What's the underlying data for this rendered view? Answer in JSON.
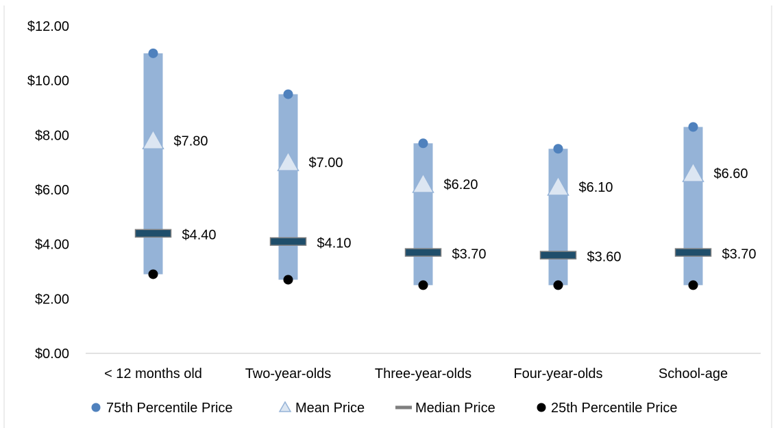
{
  "chart_data": {
    "type": "range",
    "categories": [
      "< 12 months old",
      "Two-year-olds",
      "Three-year-olds",
      "Four-year-olds",
      "School-age"
    ],
    "series": [
      {
        "name": "75th Percentile Price",
        "values": [
          11.0,
          9.5,
          7.7,
          7.5,
          8.3
        ]
      },
      {
        "name": "Mean Price",
        "values": [
          7.8,
          7.0,
          6.2,
          6.1,
          6.6
        ]
      },
      {
        "name": "Median Price",
        "values": [
          4.4,
          4.1,
          3.7,
          3.6,
          3.7
        ]
      },
      {
        "name": "25th Percentile Price",
        "values": [
          2.9,
          2.7,
          2.5,
          2.5,
          2.5
        ]
      }
    ],
    "data_labels": {
      "mean": [
        "$7.80",
        "$7.00",
        "$6.20",
        "$6.10",
        "$6.60"
      ],
      "median": [
        "$4.40",
        "$4.10",
        "$3.70",
        "$3.60",
        "$3.70"
      ]
    },
    "y_ticks": [
      0,
      2,
      4,
      6,
      8,
      10,
      12
    ],
    "y_tick_labels": [
      "$0.00",
      "$2.00",
      "$4.00",
      "$6.00",
      "$8.00",
      "$10.00",
      "$12.00"
    ],
    "ylim": [
      0,
      12
    ],
    "grid": false,
    "legend_position": "bottom",
    "colors": {
      "range_bar": "#95B3D7",
      "p75_marker": "#4F81BD",
      "mean_marker_fill": "#DCE6F2",
      "mean_marker_stroke": "#95B3D7",
      "median_marker_fill": "#1F4E6B",
      "median_marker_stroke": "#7F7F7F",
      "p25_marker": "#000000",
      "axis": "#D9D9D9",
      "frame": "#D9D9D9"
    }
  }
}
